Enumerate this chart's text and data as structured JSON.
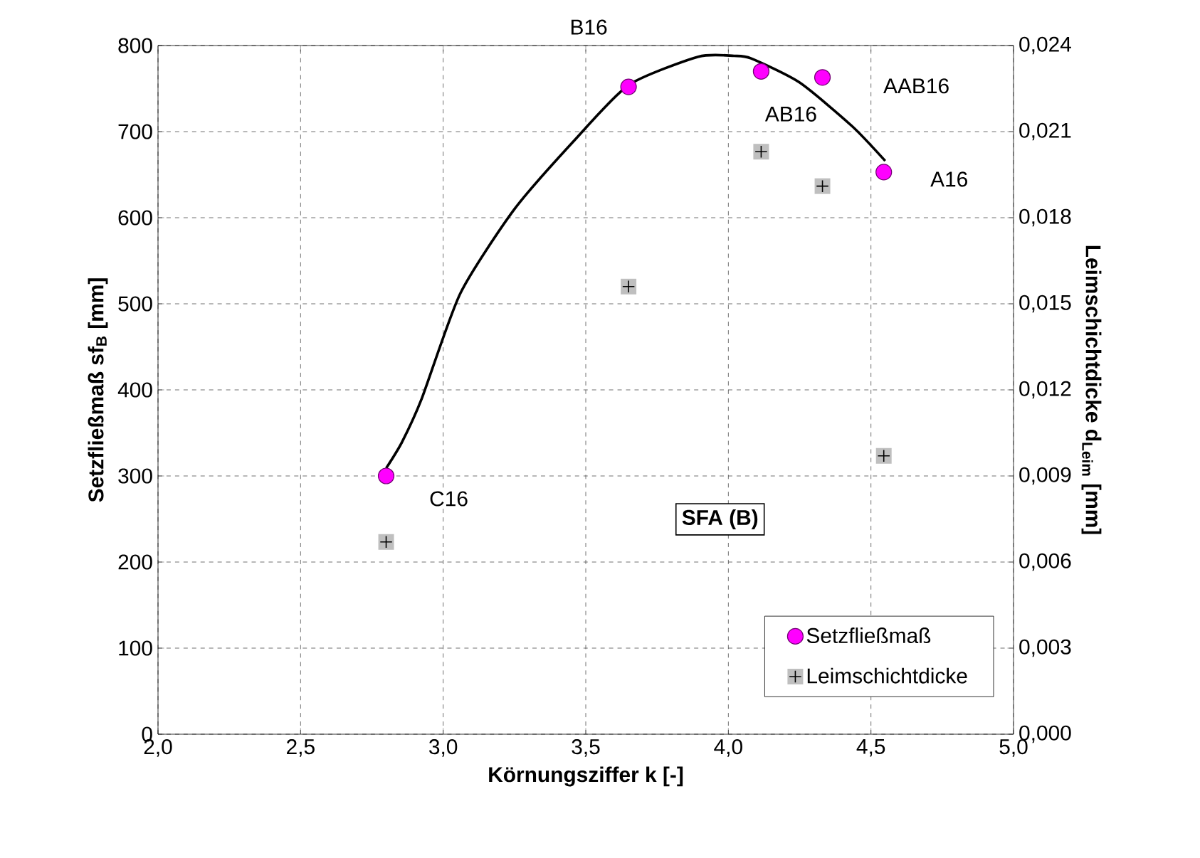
{
  "chart_data": {
    "type": "scatter",
    "xlabel": "Körnungsziffer k [-]",
    "ylabel": "Setzfließmaß sf$_{B}$ [mm]",
    "y2label": "Leimschichtdicke d$_{Leim}$ [mm]",
    "xlim": [
      2.0,
      5.0
    ],
    "xticks": [
      {
        "value": 2.0,
        "label": "2,0"
      },
      {
        "value": 2.5,
        "label": "2,5"
      },
      {
        "value": 3.0,
        "label": "3,0"
      },
      {
        "value": 3.5,
        "label": "3,5"
      },
      {
        "value": 4.0,
        "label": "4,0"
      },
      {
        "value": 4.5,
        "label": "4,5"
      },
      {
        "value": 5.0,
        "label": "5,0"
      }
    ],
    "ylim": [
      0,
      800
    ],
    "yticks": [
      0,
      100,
      200,
      300,
      400,
      500,
      600,
      700,
      800
    ],
    "y2lim": [
      0,
      0.024
    ],
    "y2ticks": [
      {
        "value": 0,
        "label": "0,000"
      },
      {
        "value": 0.003,
        "label": "0,003"
      },
      {
        "value": 0.006,
        "label": "0,006"
      },
      {
        "value": 0.009,
        "label": "0,009"
      },
      {
        "value": 0.012,
        "label": "0,012"
      },
      {
        "value": 0.015,
        "label": "0,015"
      },
      {
        "value": 0.018,
        "label": "0,018"
      },
      {
        "value": 0.021,
        "label": "0,021"
      },
      {
        "value": 0.024,
        "label": "0,024"
      }
    ],
    "grid": true,
    "legend": "bottom right",
    "series": [
      {
        "name": "Setzfließmaß",
        "marker": "circle",
        "color": "#ff00ff",
        "x": [
          2.8,
          3.65,
          4.115,
          4.33,
          4.545
        ],
        "values": [
          300,
          752,
          770,
          763,
          653
        ]
      },
      {
        "name": "Leimschichtdicke",
        "marker": "square",
        "axis": "y2",
        "color": "#c0c0c0",
        "x": [
          2.8,
          3.65,
          4.115,
          4.33,
          4.545
        ],
        "values": [
          0.0067,
          0.0156,
          0.0203,
          0.0191,
          0.0097
        ]
      },
      {
        "type": "line",
        "color": "#000000",
        "marker": "none",
        "line_style": "solid",
        "x": [
          2.8,
          2.855,
          2.925,
          3.06,
          3.25,
          3.455,
          3.65,
          3.895,
          4.02,
          4.08,
          4.25,
          4.435,
          4.55
        ],
        "values": [
          309,
          339,
          390,
          512,
          610,
          688,
          754,
          787,
          788,
          785,
          757,
          706,
          666
        ]
      }
    ],
    "annotations": [
      {
        "text": "C16",
        "x": 2.8,
        "y": 300
      },
      {
        "text": "B16",
        "x": 3.65,
        "y": 752
      },
      {
        "text": "AB16",
        "x": 4.115,
        "y": 770
      },
      {
        "text": "AAB16",
        "x": 4.33,
        "y": 763
      },
      {
        "text": "A16",
        "x": 4.545,
        "y": 653
      },
      "SFA (B)"
    ]
  }
}
